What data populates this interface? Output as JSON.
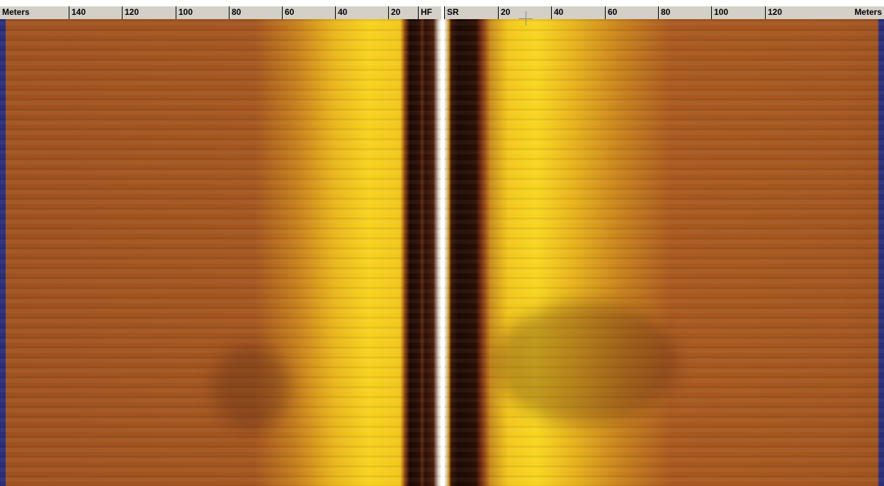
{
  "left_panel": {
    "ruler": [
      "Meters",
      140,
      120,
      100,
      80,
      60,
      40,
      20,
      "HF"
    ]
  },
  "right_panel": {
    "ruler": [
      "SR",
      20,
      40,
      60,
      80,
      100,
      120,
      "Meters"
    ]
  }
}
